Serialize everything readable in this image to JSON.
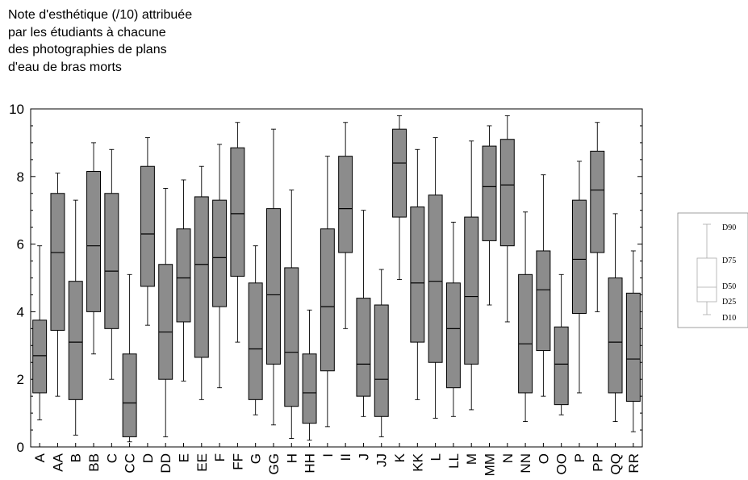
{
  "chart_data": {
    "type": "boxplot",
    "title": "Note d'esthétique (/10) attribuée\npar les étudiants à chacune\ndes photographies de plans\nd'eau de bras morts",
    "xlabel": "",
    "ylabel": "",
    "ylim": [
      0,
      10
    ],
    "y_ticks": [
      "0",
      "2",
      "4",
      "6",
      "8",
      "10"
    ],
    "grid": false,
    "box_color": "#8c8c8c",
    "legend": {
      "placement": "right",
      "labels": [
        "D90",
        "D75",
        "D50",
        "D25",
        "D10"
      ]
    },
    "categories": [
      "A",
      "AA",
      "B",
      "BB",
      "C",
      "CC",
      "D",
      "DD",
      "E",
      "EE",
      "F",
      "FF",
      "G",
      "GG",
      "H",
      "HH",
      "I",
      "II",
      "J",
      "JJ",
      "K",
      "KK",
      "L",
      "LL",
      "M",
      "MM",
      "N",
      "NN",
      "O",
      "OO",
      "P",
      "PP",
      "QQ",
      "RR"
    ],
    "d10": [
      0.8,
      1.5,
      0.35,
      2.75,
      2.0,
      0.15,
      3.6,
      0.3,
      1.95,
      1.4,
      1.75,
      3.1,
      0.95,
      0.65,
      0.25,
      0.2,
      0.6,
      3.5,
      0.9,
      0.3,
      4.95,
      1.4,
      0.85,
      0.9,
      1.1,
      4.2,
      3.7,
      0.75,
      1.5,
      0.95,
      1.6,
      4.0,
      0.75,
      0.45
    ],
    "d25": [
      1.6,
      3.45,
      1.4,
      4.0,
      3.5,
      0.3,
      4.75,
      2.0,
      3.7,
      2.65,
      4.15,
      5.05,
      1.4,
      2.45,
      1.2,
      0.7,
      2.25,
      5.75,
      1.5,
      0.9,
      6.8,
      3.1,
      2.5,
      1.75,
      2.45,
      6.1,
      5.95,
      1.6,
      2.85,
      1.25,
      3.95,
      5.75,
      1.6,
      1.35
    ],
    "d50": [
      2.7,
      5.75,
      3.1,
      5.95,
      5.2,
      1.3,
      6.3,
      3.4,
      5.0,
      5.4,
      5.6,
      6.9,
      2.9,
      4.5,
      2.8,
      1.6,
      4.15,
      7.05,
      2.45,
      2.0,
      8.4,
      4.85,
      4.9,
      3.5,
      4.45,
      7.7,
      7.75,
      3.05,
      4.65,
      2.45,
      5.55,
      7.6,
      3.1,
      2.6
    ],
    "d75": [
      3.75,
      7.5,
      4.9,
      8.15,
      7.5,
      2.75,
      8.3,
      5.4,
      6.45,
      7.4,
      7.3,
      8.85,
      4.85,
      7.05,
      5.3,
      2.75,
      6.45,
      8.6,
      4.4,
      4.2,
      9.4,
      7.1,
      7.45,
      4.85,
      6.8,
      8.9,
      9.1,
      5.1,
      5.8,
      3.55,
      7.3,
      8.75,
      5.0,
      4.55
    ],
    "d90": [
      5.95,
      8.1,
      7.3,
      9.0,
      8.8,
      5.1,
      9.15,
      7.65,
      7.9,
      8.3,
      8.95,
      9.6,
      5.95,
      9.4,
      7.6,
      4.05,
      8.6,
      9.6,
      7.0,
      5.25,
      9.8,
      8.8,
      9.15,
      6.65,
      9.05,
      9.5,
      9.8,
      6.95,
      8.05,
      5.1,
      8.45,
      9.6,
      6.9,
      5.8
    ]
  }
}
